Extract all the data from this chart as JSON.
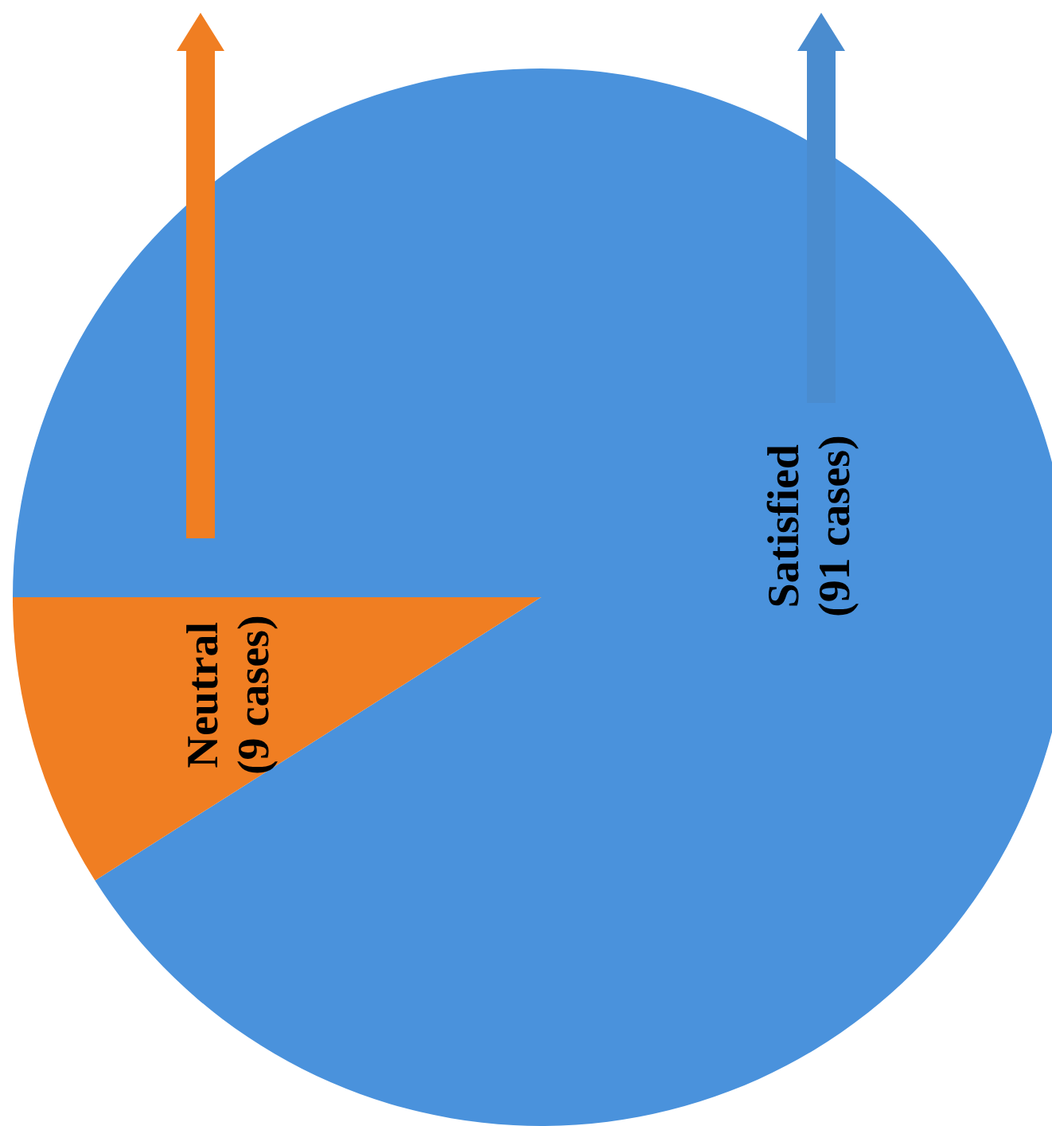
{
  "chart_data": {
    "type": "pie",
    "categories": [
      "Satisfied",
      "Neutral"
    ],
    "values": [
      91,
      9
    ],
    "value_labels": [
      "(91 cases)",
      "(9 cases)"
    ],
    "colors": [
      "#4a92dc",
      "#f07e22"
    ]
  }
}
